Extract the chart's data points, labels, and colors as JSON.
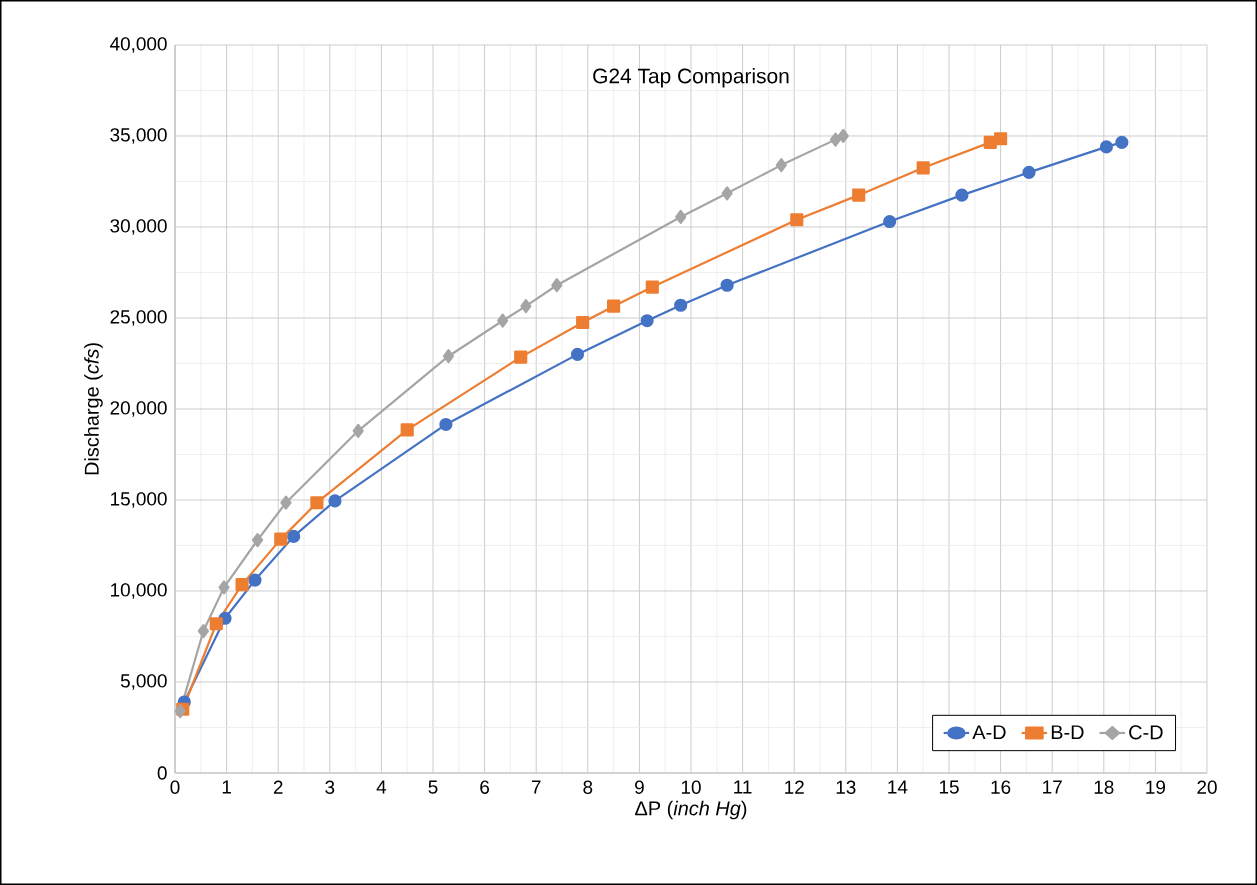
{
  "chart_data": {
    "type": "line",
    "title": "G24 Tap Comparison",
    "xlabel": "ΔP (*inch Hg*)",
    "ylabel": "Discharge (*cfs*)",
    "series": [
      {
        "name": "A-D",
        "color": "#4472c4",
        "marker": "circle",
        "x": [
          0.18,
          0.97,
          1.55,
          2.3,
          3.1,
          5.25,
          7.8,
          9.15,
          9.8,
          10.7,
          13.85,
          15.25,
          16.55,
          18.05,
          18.35
        ],
        "values": [
          3900,
          8500,
          10600,
          13000,
          14950,
          19150,
          23000,
          24850,
          25700,
          26800,
          30300,
          31750,
          33000,
          34400,
          34650
        ]
      },
      {
        "name": "B-D",
        "color": "#ed7d31",
        "marker": "square",
        "x": [
          0.15,
          0.8,
          1.3,
          2.05,
          2.75,
          4.5,
          6.7,
          7.9,
          8.5,
          9.25,
          12.05,
          13.25,
          14.5,
          15.8,
          16.0
        ],
        "values": [
          3500,
          8200,
          10350,
          12850,
          14850,
          18850,
          22850,
          24750,
          25650,
          26700,
          30400,
          31750,
          33250,
          34650,
          34850
        ]
      },
      {
        "name": "C-D",
        "color": "#a5a5a5",
        "marker": "diamond",
        "x": [
          0.1,
          0.55,
          0.95,
          1.6,
          2.15,
          3.55,
          5.3,
          6.35,
          6.8,
          7.4,
          9.8,
          10.7,
          11.75,
          12.8,
          12.95
        ],
        "values": [
          3400,
          7800,
          10200,
          12800,
          14850,
          18800,
          22900,
          24850,
          25650,
          26800,
          30550,
          31850,
          33400,
          34800,
          35000
        ]
      }
    ],
    "xlim": [
      0,
      20
    ],
    "xticks": [
      0,
      1,
      2,
      3,
      4,
      5,
      6,
      7,
      8,
      9,
      10,
      11,
      12,
      13,
      14,
      15,
      16,
      17,
      18,
      19,
      20
    ],
    "ylim": [
      0,
      40000
    ],
    "yticks": [
      0,
      {
        "value": 5000,
        "label": "5,000"
      },
      {
        "value": 10000,
        "label": "10,000"
      },
      {
        "value": 15000,
        "label": "15,000"
      },
      {
        "value": 20000,
        "label": "20,000"
      },
      {
        "value": 25000,
        "label": "25,000"
      },
      {
        "value": 30000,
        "label": "30,000"
      },
      {
        "value": 35000,
        "label": "35,000"
      },
      {
        "value": 40000,
        "label": "40,000"
      }
    ],
    "grid": true,
    "legend": "bottom right",
    "line_style": "solid"
  }
}
